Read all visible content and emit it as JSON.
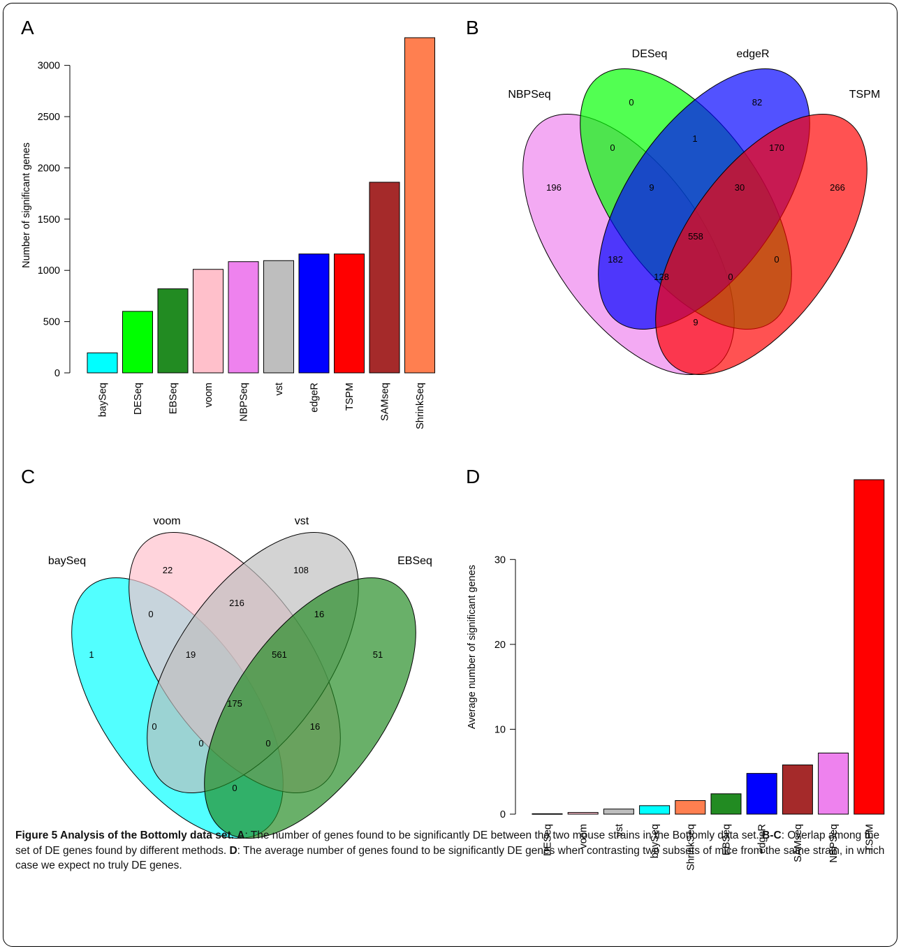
{
  "panels": {
    "a": {
      "letter": "A"
    },
    "b": {
      "letter": "B"
    },
    "c": {
      "letter": "C"
    },
    "d": {
      "letter": "D"
    }
  },
  "chart_data": [
    {
      "panel": "A",
      "type": "bar",
      "categories": [
        "baySeq",
        "DESeq",
        "EBSeq",
        "voom",
        "NBPSeq",
        "vst",
        "edgeR",
        "TSPM",
        "SAMseq",
        "ShrinkSeq"
      ],
      "values": [
        195,
        600,
        820,
        1010,
        1085,
        1095,
        1160,
        1160,
        1860,
        3270
      ],
      "colors": [
        "#00ffff",
        "#00ff00",
        "#228b22",
        "#ffc0cb",
        "#ee82ee",
        "#bebebe",
        "#0000ff",
        "#ff0000",
        "#a52a2a",
        "#ff7f50"
      ],
      "ylabel": "Number of significant genes",
      "yticks": [
        0,
        500,
        1000,
        1500,
        2000,
        2500,
        3000
      ],
      "ylim": [
        0,
        3270
      ],
      "grid": false
    },
    {
      "panel": "B",
      "type": "venn",
      "sets": [
        {
          "name": "NBPSeq",
          "color": "#ee82ee"
        },
        {
          "name": "DESeq",
          "color": "#00ff00"
        },
        {
          "name": "edgeR",
          "color": "#0000ff"
        },
        {
          "name": "TSPM",
          "color": "#ff0000"
        }
      ],
      "regions": [
        {
          "sets": [
            "NBPSeq"
          ],
          "count": "196"
        },
        {
          "sets": [
            "DESeq"
          ],
          "count": "0"
        },
        {
          "sets": [
            "edgeR"
          ],
          "count": "82"
        },
        {
          "sets": [
            "TSPM"
          ],
          "count": "266"
        },
        {
          "sets": [
            "NBPSeq",
            "DESeq"
          ],
          "count": "0"
        },
        {
          "sets": [
            "DESeq",
            "edgeR"
          ],
          "count": "1"
        },
        {
          "sets": [
            "edgeR",
            "TSPM"
          ],
          "count": "170"
        },
        {
          "sets": [
            "NBPSeq",
            "DESeq",
            "edgeR"
          ],
          "count": "9"
        },
        {
          "sets": [
            "DESeq",
            "edgeR",
            "TSPM"
          ],
          "count": "30"
        },
        {
          "sets": [
            "NBPSeq",
            "DESeq",
            "edgeR",
            "TSPM"
          ],
          "count": "558"
        },
        {
          "sets": [
            "NBPSeq",
            "edgeR"
          ],
          "count": "182"
        },
        {
          "sets": [
            "DESeq",
            "TSPM"
          ],
          "count": "0"
        },
        {
          "sets": [
            "NBPSeq",
            "edgeR",
            "TSPM"
          ],
          "count": "128"
        },
        {
          "sets": [
            "NBPSeq",
            "DESeq",
            "TSPM"
          ],
          "count": "0"
        },
        {
          "sets": [
            "NBPSeq",
            "TSPM"
          ],
          "count": "9"
        }
      ]
    },
    {
      "panel": "C",
      "type": "venn",
      "sets": [
        {
          "name": "baySeq",
          "color": "#00ffff"
        },
        {
          "name": "voom",
          "color": "#ffc0cb"
        },
        {
          "name": "vst",
          "color": "#bebebe"
        },
        {
          "name": "EBSeq",
          "color": "#228b22"
        }
      ],
      "regions": [
        {
          "sets": [
            "baySeq"
          ],
          "count": "1"
        },
        {
          "sets": [
            "voom"
          ],
          "count": "22"
        },
        {
          "sets": [
            "vst"
          ],
          "count": "108"
        },
        {
          "sets": [
            "EBSeq"
          ],
          "count": "51"
        },
        {
          "sets": [
            "baySeq",
            "voom"
          ],
          "count": "0"
        },
        {
          "sets": [
            "voom",
            "vst"
          ],
          "count": "216"
        },
        {
          "sets": [
            "vst",
            "EBSeq"
          ],
          "count": "16"
        },
        {
          "sets": [
            "baySeq",
            "voom",
            "vst"
          ],
          "count": "19"
        },
        {
          "sets": [
            "voom",
            "vst",
            "EBSeq"
          ],
          "count": "561"
        },
        {
          "sets": [
            "baySeq",
            "voom",
            "vst",
            "EBSeq"
          ],
          "count": "175"
        },
        {
          "sets": [
            "baySeq",
            "vst"
          ],
          "count": "0"
        },
        {
          "sets": [
            "voom",
            "EBSeq"
          ],
          "count": "16"
        },
        {
          "sets": [
            "baySeq",
            "vst",
            "EBSeq"
          ],
          "count": "0"
        },
        {
          "sets": [
            "baySeq",
            "voom",
            "EBSeq"
          ],
          "count": "0"
        },
        {
          "sets": [
            "baySeq",
            "EBSeq"
          ],
          "count": "0"
        }
      ]
    },
    {
      "panel": "D",
      "type": "bar",
      "categories": [
        "DESeq",
        "voom",
        "vst",
        "baySeq",
        "ShrinkSeq",
        "EBSeq",
        "edgeR",
        "SAMseq",
        "NBPSeq",
        "TSPM"
      ],
      "values": [
        0.05,
        0.2,
        0.6,
        1.0,
        1.6,
        2.4,
        4.8,
        5.8,
        7.2,
        39.4
      ],
      "colors": [
        "#00ff00",
        "#ffc0cb",
        "#bebebe",
        "#00ffff",
        "#ff7f50",
        "#228b22",
        "#0000ff",
        "#a52a2a",
        "#ee82ee",
        "#ff0000"
      ],
      "ylabel": "Average number of significant genes",
      "yticks": [
        0,
        10,
        20,
        30
      ],
      "ylim": [
        0,
        39.4
      ],
      "grid": false
    }
  ],
  "caption": {
    "label": "Figure 5 Analysis of the Bottomly data set.",
    "a_key": "A",
    "a_text": ": The number of genes found to be significantly DE between the two mouse strains in the Bottomly data set. ",
    "bc_key": "B-C",
    "bc_text": ": Overlap among the set of DE genes found by different methods. ",
    "d_key": "D",
    "d_text": ": The average number of genes found to be significantly DE genes when contrasting two subsets of mice from the same strain, in which case we expect no truly DE genes."
  }
}
